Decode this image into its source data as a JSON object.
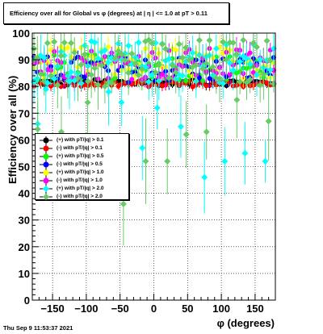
{
  "title": "Efficiency over all for Global vs φ (degrees) at |  η | <= 1.0 at pT > 0.11",
  "footer": "Thu Sep  9 11:53:37 2021",
  "chart_data": {
    "type": "scatter",
    "xlabel": "φ (degrees)",
    "ylabel": "Efficiency over all (%)",
    "xlim": [
      -180,
      180
    ],
    "ylim": [
      0,
      100
    ],
    "x_ticks": [
      -150,
      -100,
      -50,
      0,
      50,
      100,
      150
    ],
    "x_tick_labels": [
      "−150",
      "−100",
      "−50",
      "0",
      "50",
      "100",
      "150"
    ],
    "y_ticks": [
      0,
      10,
      20,
      30,
      40,
      50,
      60,
      70,
      80,
      90,
      100
    ],
    "grid": true,
    "legend_position": "left-middle",
    "series": [
      {
        "name": "(+) with pT/|q| > 0.1",
        "color": "#000000",
        "marker": "circle",
        "center": 81.5,
        "spread": 1.2,
        "err": 1.5
      },
      {
        "name": "(-) with pT/|q| > 0.1",
        "color": "#ff0000",
        "marker": "circle",
        "center": 81.0,
        "spread": 1.2,
        "err": 1.5
      },
      {
        "name": "(+) with pT/|q| > 0.5",
        "color": "#00ff00",
        "marker": "circle",
        "center": 87.0,
        "spread": 5.0,
        "err": 3.0
      },
      {
        "name": "(-) with pT/|q| > 0.5",
        "color": "#0000ff",
        "marker": "circle",
        "center": 86.5,
        "spread": 5.0,
        "err": 3.0
      },
      {
        "name": "(+) with pT/|q| > 1.0",
        "color": "#ffff00",
        "marker": "circle",
        "center": 89.0,
        "spread": 6.0,
        "err": 4.0
      },
      {
        "name": "(-) with pT/|q| > 1.0",
        "color": "#ff00ff",
        "marker": "circle",
        "center": 88.5,
        "spread": 6.0,
        "err": 4.0
      },
      {
        "name": "(+) with pT/|q| > 2.0",
        "color": "#00ffff",
        "marker": "diamond",
        "center": 89.0,
        "spread": 8.0,
        "err": 6.0
      },
      {
        "name": "(-) with pT/|q| > 2.0",
        "color": "#66cc66",
        "marker": "diamond",
        "center": 89.0,
        "spread": 9.0,
        "err": 7.0
      }
    ],
    "cyan_outliers": [
      [
        -172,
        66
      ],
      [
        -160,
        79
      ],
      [
        -125,
        82
      ],
      [
        -67,
        78
      ],
      [
        -48,
        74
      ],
      [
        -17,
        57
      ],
      [
        5,
        72
      ],
      [
        40,
        65
      ],
      [
        75,
        46
      ],
      [
        105,
        52
      ],
      [
        135,
        55
      ],
      [
        165,
        52
      ]
    ],
    "green_outliers": [
      [
        -172,
        64
      ],
      [
        -137,
        63
      ],
      [
        -98,
        74
      ],
      [
        -45,
        36
      ],
      [
        -12,
        52
      ],
      [
        20,
        52
      ],
      [
        48,
        62
      ],
      [
        78,
        63
      ],
      [
        123,
        75
      ],
      [
        170,
        67
      ]
    ]
  }
}
